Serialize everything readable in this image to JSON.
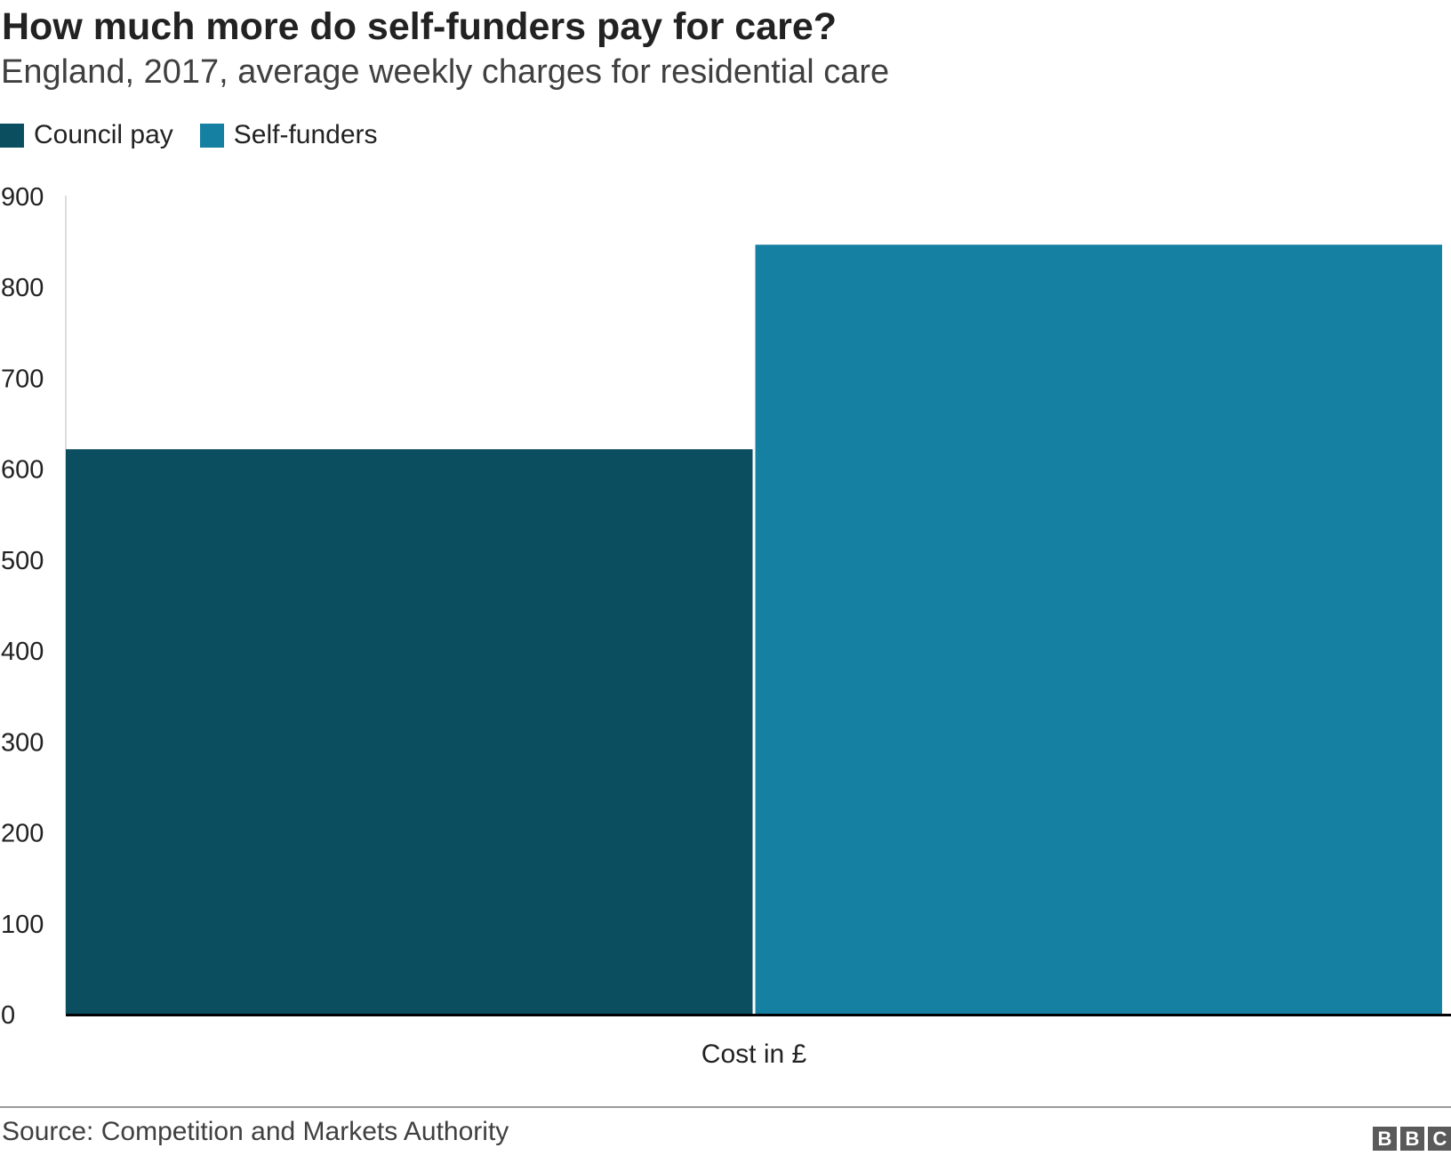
{
  "title": "How much more do self-funders pay for care?",
  "subtitle": "England, 2017, average weekly charges for residential care",
  "source": "Source: Competition and Markets Authority",
  "logo": [
    "B",
    "B",
    "C"
  ],
  "colors": {
    "council_pay": "#0b4e60",
    "self_funders": "#1580a1",
    "axis": "#000000",
    "gridline_axis": "#d0d0d0"
  },
  "chart_data": {
    "type": "bar",
    "categories": [
      "Cost in £"
    ],
    "series": [
      {
        "name": "Council pay",
        "values": [
          621
        ],
        "color": "#0b4e60"
      },
      {
        "name": "Self-funders",
        "values": [
          846
        ],
        "color": "#1580a1"
      }
    ],
    "ylim": [
      0,
      900
    ],
    "yticks": [
      0,
      100,
      200,
      300,
      400,
      500,
      600,
      700,
      800,
      900
    ],
    "xlabel": "",
    "ylabel": "",
    "grid": false,
    "legend_position": "top-left"
  }
}
